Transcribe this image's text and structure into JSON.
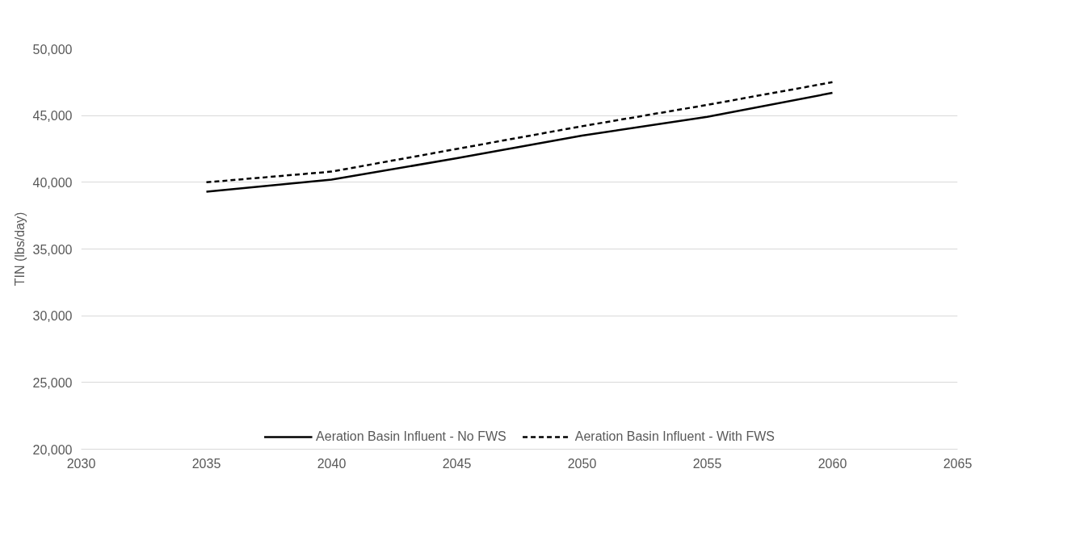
{
  "chart_data": {
    "type": "line",
    "ylabel": "TIN (lbs/day)",
    "x": [
      2035,
      2040,
      2045,
      2050,
      2055,
      2060
    ],
    "series": [
      {
        "name": "Aeration Basin Influent - No FWS",
        "color": "#000000",
        "line_style": "solid",
        "values": [
          39300,
          40200,
          41800,
          43500,
          44900,
          46700
        ]
      },
      {
        "name": "Aeration Basin Influent - With FWS",
        "color": "#000000",
        "line_style": "dashed",
        "values": [
          40000,
          40800,
          42500,
          44200,
          45800,
          47500
        ]
      }
    ],
    "xlim": [
      2030,
      2065
    ],
    "xticks": [
      2030,
      2035,
      2040,
      2045,
      2050,
      2055,
      2060,
      2065
    ],
    "ylim": [
      20000,
      50000
    ],
    "yticks": [
      {
        "value": 20000,
        "label": "20,000"
      },
      {
        "value": 25000,
        "label": "25,000"
      },
      {
        "value": 30000,
        "label": "30,000"
      },
      {
        "value": 35000,
        "label": "35,000"
      },
      {
        "value": 40000,
        "label": "40,000"
      },
      {
        "value": 45000,
        "label": "45,000"
      },
      {
        "value": 50000,
        "label": "50,000"
      }
    ],
    "grid": "y",
    "legend": "bottom",
    "marker": "none"
  }
}
